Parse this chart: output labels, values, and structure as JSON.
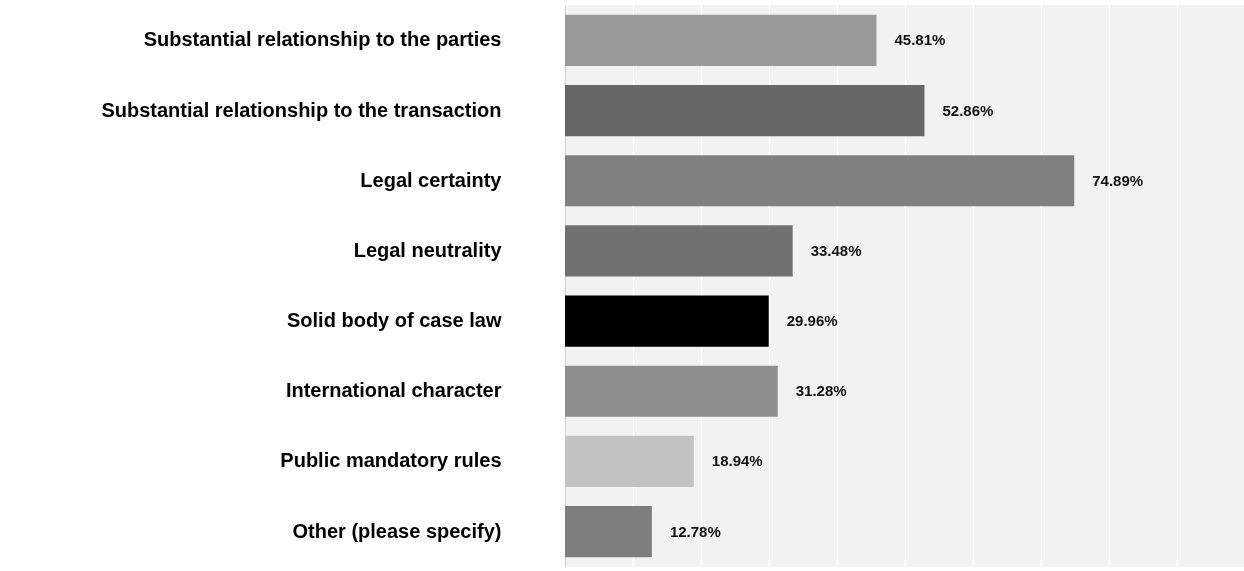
{
  "chart_data": {
    "type": "bar",
    "orientation": "horizontal",
    "categories": [
      "Substantial relationship to the parties",
      "Substantial relationship to the transaction",
      "Legal certainty",
      "Legal neutrality",
      "Solid body of case law",
      "International character",
      "Public mandatory rules",
      "Other (please specify)"
    ],
    "values": [
      45.81,
      52.86,
      74.89,
      33.48,
      29.96,
      31.28,
      18.94,
      12.78
    ],
    "value_labels": [
      "45.81%",
      "52.86%",
      "74.89%",
      "33.48%",
      "29.96%",
      "31.28%",
      "18.94%",
      "12.78%"
    ],
    "colors": [
      "#9a9a9a",
      "#666666",
      "#808080",
      "#707070",
      "#000000",
      "#8e8e8e",
      "#c2c2c2",
      "#7e7e7e"
    ],
    "xlim": [
      0,
      100
    ],
    "xticks": [
      0,
      10,
      20,
      30,
      40,
      50,
      60,
      70,
      80,
      90,
      100
    ],
    "grid": "x",
    "tick_labels": "y"
  }
}
